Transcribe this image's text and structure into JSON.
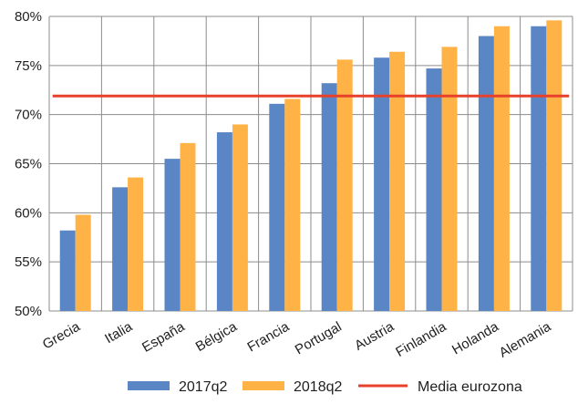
{
  "chart_data": {
    "type": "bar",
    "categories": [
      "Grecia",
      "Italia",
      "España",
      "Bélgica",
      "Francia",
      "Portugal",
      "Austria",
      "Finlandia",
      "Holanda",
      "Alemania"
    ],
    "series": [
      {
        "name": "2017q2",
        "color": "#5b86c5",
        "values": [
          58.2,
          62.6,
          65.5,
          68.2,
          71.1,
          73.2,
          75.8,
          74.7,
          78.0,
          79.0
        ]
      },
      {
        "name": "2018q2",
        "color": "#ffb347",
        "values": [
          59.8,
          63.6,
          67.1,
          69.0,
          71.6,
          75.6,
          76.4,
          76.9,
          79.0,
          79.6
        ]
      }
    ],
    "reference_line": {
      "name": "Media eurozona",
      "color": "#e8412b",
      "value": 71.9
    },
    "ylim": [
      50,
      80
    ],
    "yticks": [
      "50%",
      "55%",
      "60%",
      "65%",
      "70%",
      "75%",
      "80%"
    ],
    "grid": true,
    "legend_position": "bottom",
    "title": "",
    "xlabel": "",
    "ylabel": ""
  }
}
